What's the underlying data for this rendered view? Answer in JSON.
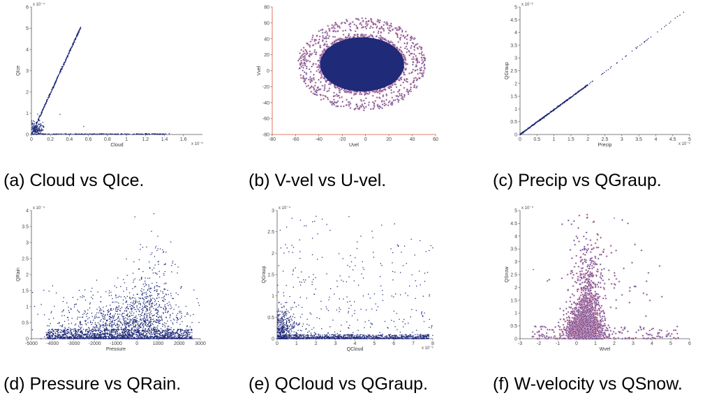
{
  "figure": {
    "captions": [
      "(a) Cloud vs QIce.",
      "(b) V-vel vs U-vel.",
      "(c) Precip vs QGraup.",
      "(d) Pressure vs QRain.",
      "(e) QCloud vs QGraup.",
      "(f) W-velocity vs QSnow."
    ]
  },
  "colors": {
    "points": "#1f2a78",
    "halo": "#e9a0c0",
    "axis": "#555555",
    "axis_red": "#d8503a"
  },
  "chart_data": [
    {
      "type": "scatter",
      "xlabel": "Cloud",
      "ylabel": "QIce",
      "x_exponent": "x 10⁻³",
      "y_exponent": "x 10⁻⁴",
      "xlim": [
        0,
        1.8
      ],
      "ylim": [
        0,
        6
      ],
      "xticks": [
        "0",
        "0.2",
        "0.4",
        "0.6",
        "0.8",
        "1",
        "1.2",
        "1.4",
        "1.6"
      ],
      "yticks": [
        "0",
        "1",
        "2",
        "3",
        "4",
        "5",
        "6"
      ],
      "grid": false,
      "structure": [
        {
          "shape": "line",
          "from": [
            0,
            0
          ],
          "to": [
            0.52,
            5.05
          ],
          "n": 380
        },
        {
          "shape": "line",
          "from": [
            0,
            0.02
          ],
          "to": [
            1.42,
            0.02
          ],
          "n": 260
        },
        {
          "shape": "cloud",
          "center": [
            0.04,
            0.25
          ],
          "spread": [
            0.04,
            0.25
          ],
          "n": 180
        }
      ],
      "outliers": [
        [
          0.3,
          0.95
        ],
        [
          0.55,
          0.38
        ],
        [
          1.2,
          0.05
        ],
        [
          1.45,
          0.04
        ]
      ]
    },
    {
      "type": "scatter",
      "xlabel": "Uvel",
      "ylabel": "Vvel",
      "xlim": [
        -80,
        60
      ],
      "ylim": [
        -80,
        80
      ],
      "xticks": [
        "-80",
        "-60",
        "-40",
        "-20",
        "0",
        "20",
        "40",
        "60"
      ],
      "yticks": [
        "-80",
        "-60",
        "-40",
        "-20",
        "0",
        "20",
        "40",
        "60",
        "80"
      ],
      "grid": false,
      "structure": [
        {
          "shape": "ellipse",
          "center": [
            -3,
            8
          ],
          "radii": [
            38,
            38
          ],
          "n": 2200
        },
        {
          "shape": "halo",
          "center": [
            -3,
            8
          ],
          "radii": [
            55,
            58
          ],
          "n": 650
        }
      ],
      "outliers": []
    },
    {
      "type": "scatter",
      "xlabel": "Precip",
      "ylabel": "QGraup",
      "x_exponent": "x 10⁻³",
      "y_exponent": "x 10⁻³",
      "xlim": [
        0,
        5
      ],
      "ylim": [
        0,
        5
      ],
      "xticks": [
        "0",
        "0.5",
        "1",
        "1.5",
        "2",
        "2.5",
        "3",
        "3.5",
        "4",
        "4.5",
        "5"
      ],
      "yticks": [
        "0",
        "0.5",
        "1",
        "1.5",
        "2",
        "2.5",
        "3",
        "3.5",
        "4",
        "4.5",
        "5"
      ],
      "grid": false,
      "structure": [
        {
          "shape": "line",
          "from": [
            0,
            0
          ],
          "to": [
            2.0,
            1.95
          ],
          "n": 500
        },
        {
          "shape": "line",
          "from": [
            2.0,
            1.95
          ],
          "to": [
            4.9,
            4.88
          ],
          "n": 40
        }
      ],
      "outliers": []
    },
    {
      "type": "scatter",
      "xlabel": "Pressure",
      "ylabel": "QRain",
      "y_exponent": "x 10⁻⁴",
      "xlim": [
        -5000,
        3000
      ],
      "ylim": [
        0,
        4
      ],
      "xticks": [
        "-5000",
        "-4000",
        "-3000",
        "-2000",
        "-1000",
        "0",
        "1000",
        "2000",
        "3000"
      ],
      "yticks": [
        "0",
        "0.5",
        "1",
        "1.5",
        "2",
        "2.5",
        "3",
        "3.5",
        "4"
      ],
      "grid": false,
      "structure": [
        {
          "shape": "band",
          "xrange": [
            -4300,
            2600
          ],
          "yrange": [
            0,
            0.3
          ],
          "n": 1500
        },
        {
          "shape": "cloud",
          "center": [
            200,
            0.6
          ],
          "spread": [
            1100,
            0.6
          ],
          "n": 700
        },
        {
          "shape": "cloud",
          "center": [
            -1800,
            0.5
          ],
          "spread": [
            1500,
            0.55
          ],
          "n": 380
        },
        {
          "shape": "cloud",
          "center": [
            700,
            1.6
          ],
          "spread": [
            500,
            1.1
          ],
          "n": 180
        }
      ],
      "outliers": [
        [
          800,
          3.9
        ],
        [
          -100,
          3.8
        ]
      ]
    },
    {
      "type": "scatter",
      "xlabel": "QCloud",
      "ylabel": "QGraup",
      "x_exponent": "x 10⁻³",
      "y_exponent": "x 10⁻⁴",
      "xlim": [
        0,
        8
      ],
      "ylim": [
        0,
        3
      ],
      "xticks": [
        "0",
        "1",
        "2",
        "3",
        "4",
        "5",
        "6",
        "7",
        "8"
      ],
      "yticks": [
        "0",
        "0.5",
        "1",
        "1.5",
        "2",
        "2.5",
        "3"
      ],
      "grid": false,
      "structure": [
        {
          "shape": "band",
          "xrange": [
            0,
            7.8
          ],
          "yrange": [
            0,
            0.1
          ],
          "n": 1000
        },
        {
          "shape": "cloud",
          "center": [
            0.2,
            0.25
          ],
          "spread": [
            0.4,
            0.35
          ],
          "n": 520
        },
        {
          "shape": "band",
          "xrange": [
            0,
            8
          ],
          "yrange": [
            0,
            2.9
          ],
          "n": 320
        }
      ],
      "outliers": []
    },
    {
      "type": "scatter",
      "xlabel": "Wvel",
      "ylabel": "QSnow",
      "y_exponent": "x 10⁻⁴",
      "xlim": [
        -3,
        6
      ],
      "ylim": [
        0,
        5
      ],
      "xticks": [
        "-3",
        "-2",
        "-1",
        "0",
        "1",
        "2",
        "3",
        "4",
        "5",
        "6"
      ],
      "yticks": [
        "0",
        "0.5",
        "1",
        "1.5",
        "2",
        "2.5",
        "3",
        "3.5",
        "4",
        "4.5",
        "5"
      ],
      "grid": false,
      "structure": [
        {
          "shape": "cloud",
          "center": [
            0.4,
            0.4
          ],
          "spread": [
            0.45,
            0.45
          ],
          "n": 1500
        },
        {
          "shape": "cloud",
          "center": [
            0.6,
            1.6
          ],
          "spread": [
            0.35,
            1.3
          ],
          "n": 550
        },
        {
          "shape": "band",
          "xrange": [
            -2.5,
            5.5
          ],
          "yrange": [
            0,
            0.5
          ],
          "n": 220
        },
        {
          "shape": "cloud",
          "center": [
            1.3,
            2.5
          ],
          "spread": [
            1.3,
            1.5
          ],
          "n": 90
        }
      ],
      "outliers": [
        [
          -2.3,
          2.7
        ],
        [
          4.8,
          0.3
        ],
        [
          2.0,
          4.7
        ]
      ]
    }
  ]
}
